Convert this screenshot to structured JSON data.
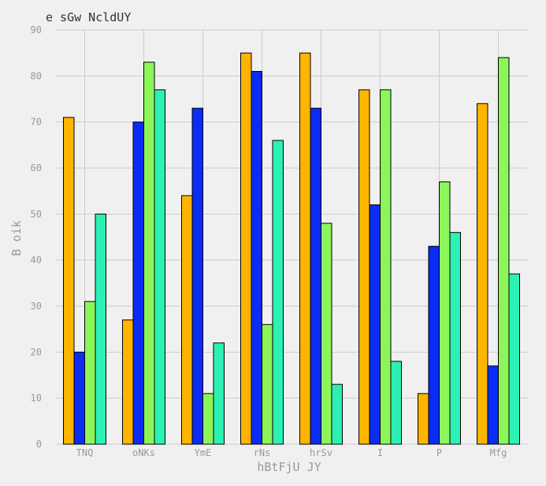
{
  "chart_data": {
    "type": "bar",
    "title": "e sGw NcldUY",
    "xlabel": "hBtFjU JY",
    "ylabel": "B oik",
    "ylim": [
      0,
      90
    ],
    "yticks": [
      0,
      10,
      20,
      30,
      40,
      50,
      60,
      70,
      80,
      90
    ],
    "grid": true,
    "categories": [
      "TNQ",
      "oNKs",
      "YmE",
      "rNs",
      "hrSv",
      "I",
      "P",
      "Mfg"
    ],
    "series": [
      {
        "color": "#ffb400",
        "values": [
          71,
          27,
          54,
          85,
          85,
          77,
          11,
          74
        ]
      },
      {
        "color": "#0a2cf5",
        "values": [
          20,
          70,
          73,
          81,
          73,
          52,
          43,
          17
        ]
      },
      {
        "color": "#8cf55a",
        "values": [
          31,
          83,
          11,
          26,
          48,
          77,
          57,
          84
        ]
      },
      {
        "color": "#2df0b4",
        "values": [
          50,
          77,
          22,
          66,
          13,
          18,
          46,
          37
        ]
      }
    ]
  }
}
